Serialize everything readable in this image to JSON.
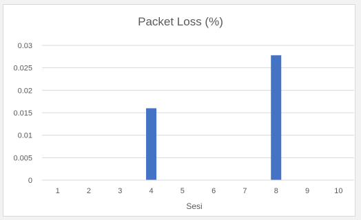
{
  "chart_data": {
    "type": "bar",
    "title": "Packet Loss (%)",
    "xlabel": "Sesi",
    "ylabel": "",
    "categories": [
      "1",
      "2",
      "3",
      "4",
      "5",
      "6",
      "7",
      "8",
      "9",
      "10"
    ],
    "values": [
      0,
      0,
      0,
      0.016,
      0,
      0,
      0,
      0.0278,
      0,
      0
    ],
    "ylim": [
      0,
      0.03
    ],
    "yticks": [
      "0",
      "0.005",
      "0.01",
      "0.015",
      "0.02",
      "0.025",
      "0.03"
    ],
    "grid": true,
    "legend": "none",
    "bar_color": "#4472c4",
    "grid_color": "#d9d9d9",
    "text_color": "#595959"
  }
}
